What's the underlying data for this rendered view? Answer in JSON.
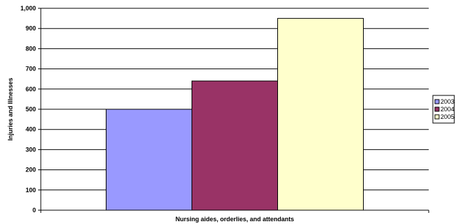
{
  "chart_data": {
    "type": "bar",
    "categories": [
      "Nursing aides, orderlies, and attendants"
    ],
    "series": [
      {
        "name": "2003",
        "values": [
          500
        ],
        "color": "#9999FF"
      },
      {
        "name": "2004",
        "values": [
          640
        ],
        "color": "#993366"
      },
      {
        "name": "2005",
        "values": [
          950
        ],
        "color": "#FFFFCC"
      }
    ],
    "xlabel": "Nursing aides, orderlies, and attendants",
    "ylabel": "Injuries and Illnesses",
    "ylim": [
      0,
      1000
    ],
    "yticks": [
      "0",
      "100",
      "200",
      "300",
      "400",
      "500",
      "600",
      "700",
      "800",
      "900",
      "1,000"
    ],
    "grid": true,
    "legend_position": "right"
  }
}
